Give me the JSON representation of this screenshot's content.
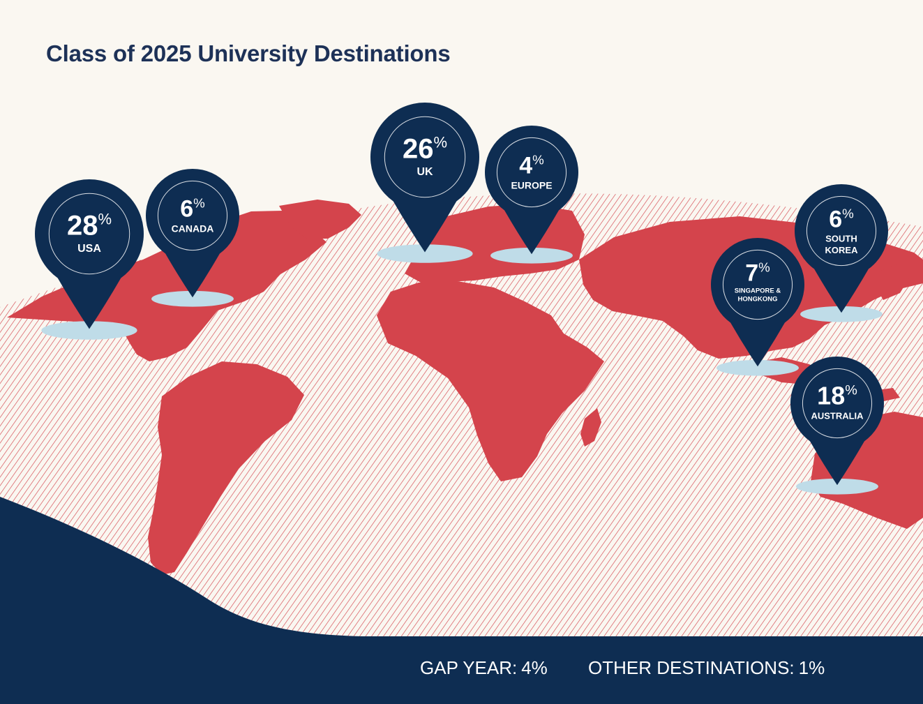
{
  "title": "Class of 2025 University Destinations",
  "colors": {
    "background": "#faf7f1",
    "land": "#d4444c",
    "hatch": "#d4444c",
    "pin": "#0e2d52",
    "pin_shadow": "#bfdce8",
    "title": "#1d3157",
    "footer_band": "#0e2d52"
  },
  "destinations": [
    {
      "id": "usa",
      "value": "28",
      "unit": "%",
      "label": [
        "USA"
      ]
    },
    {
      "id": "canada",
      "value": "6",
      "unit": "%",
      "label": [
        "CANADA"
      ]
    },
    {
      "id": "uk",
      "value": "26",
      "unit": "%",
      "label": [
        "UK"
      ]
    },
    {
      "id": "europe",
      "value": "4",
      "unit": "%",
      "label": [
        "EUROPE"
      ]
    },
    {
      "id": "singapore-hongkong",
      "value": "7",
      "unit": "%",
      "label": [
        "SINGAPORE &",
        "HONGKONG"
      ]
    },
    {
      "id": "south-korea",
      "value": "6",
      "unit": "%",
      "label": [
        "SOUTH",
        "KOREA"
      ]
    },
    {
      "id": "australia",
      "value": "18",
      "unit": "%",
      "label": [
        "AUSTRALIA"
      ]
    }
  ],
  "footer": {
    "gap_year": {
      "label": "GAP YEAR:",
      "value": "4%"
    },
    "other": {
      "label": "OTHER DESTINATIONS:",
      "value": "1%"
    }
  }
}
